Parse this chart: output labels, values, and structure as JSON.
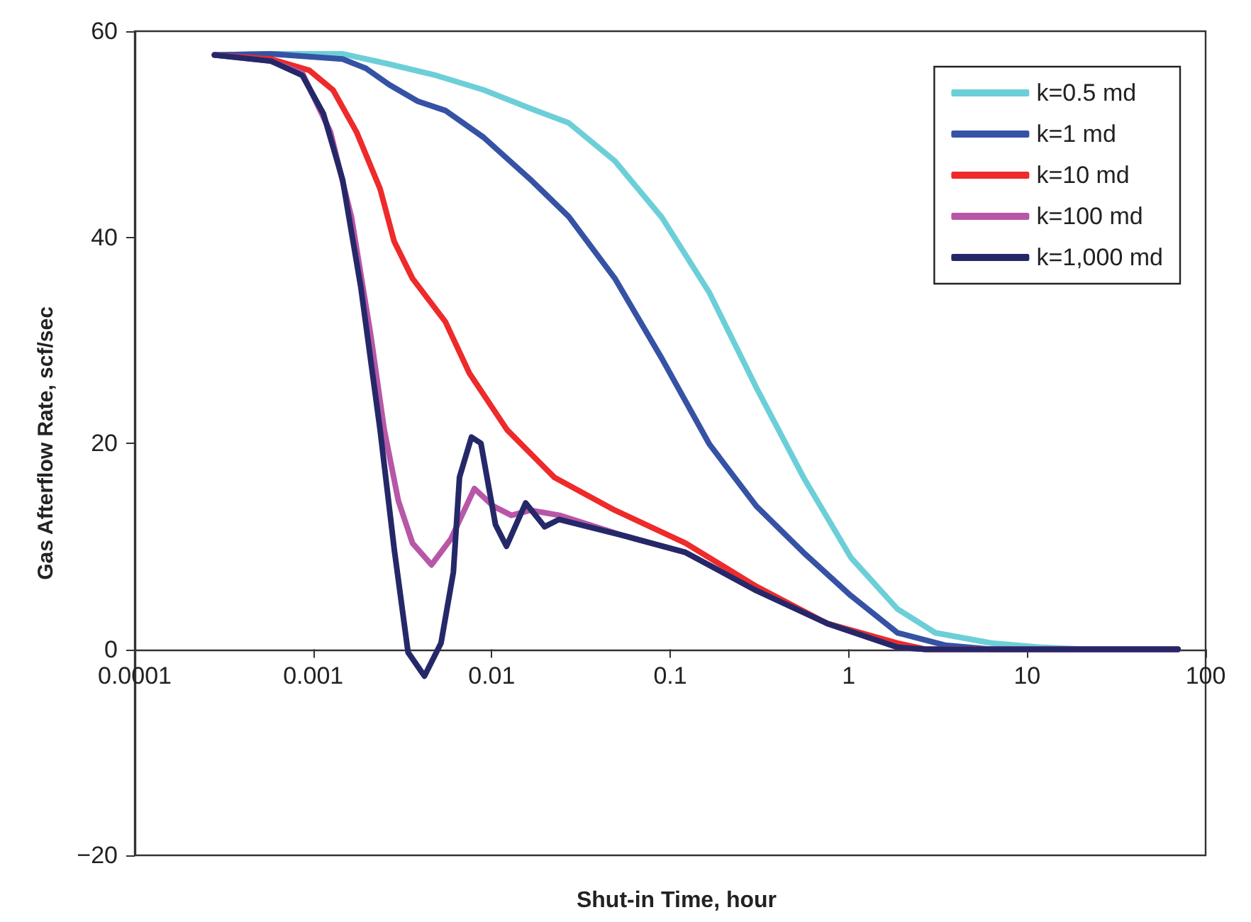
{
  "chart_data": {
    "type": "line",
    "xlabel": "Shut-in Time, hour",
    "ylabel": "Gas Afterflow Rate, scf/sec",
    "log": "x",
    "legend": "top right",
    "xlim": [
      0.0001,
      100
    ],
    "xticks": [
      0.0001,
      0.001,
      0.01,
      0.1,
      1,
      10,
      100
    ],
    "ylim": [
      -20,
      60
    ],
    "yticks": [
      {
        "value": -20,
        "label": "−20"
      },
      0,
      20,
      40,
      60
    ],
    "series": [
      {
        "name": "k=0.5 md",
        "color": "#6ccfd8",
        "x": [
          0.00028,
          0.00058,
          0.00146,
          0.00267,
          0.0049,
          0.009,
          0.0165,
          0.027,
          0.049,
          0.09,
          0.166,
          0.304,
          0.558,
          1.03,
          1.88,
          3.06,
          6.3,
          11.6,
          21.6,
          70
        ],
        "values": [
          57.7,
          57.8,
          57.8,
          56.8,
          55.7,
          54.3,
          52.5,
          51.1,
          47.4,
          41.9,
          34.6,
          25.4,
          16.7,
          8.9,
          3.9,
          1.6,
          0.6,
          0.2,
          0,
          0
        ]
      },
      {
        "name": "k=1 md",
        "color": "#3552a5",
        "x": [
          0.00028,
          0.00058,
          0.00146,
          0.00197,
          0.00267,
          0.00385,
          0.0055,
          0.009,
          0.0165,
          0.027,
          0.049,
          0.09,
          0.166,
          0.304,
          0.558,
          1.03,
          1.88,
          3.46,
          6.3,
          70
        ],
        "values": [
          57.7,
          57.8,
          57.3,
          56.4,
          54.8,
          53.2,
          52.3,
          49.7,
          45.6,
          42.0,
          36.0,
          28.2,
          19.9,
          13.9,
          9.4,
          5.2,
          1.6,
          0.4,
          0,
          0
        ]
      },
      {
        "name": "k=10 md",
        "color": "#ee2a2a",
        "x": [
          0.00028,
          0.00058,
          0.00095,
          0.00129,
          0.00175,
          0.00237,
          0.00284,
          0.0036,
          0.0055,
          0.0075,
          0.0122,
          0.0224,
          0.049,
          0.122,
          0.304,
          0.76,
          1.88,
          2.7,
          70
        ],
        "values": [
          57.7,
          57.3,
          56.2,
          54.3,
          50.2,
          44.7,
          39.6,
          36.0,
          31.8,
          26.8,
          21.3,
          16.7,
          13.5,
          10.3,
          6.1,
          2.5,
          0.6,
          0,
          0
        ]
      },
      {
        "name": "k=100 md",
        "color": "#b857a8",
        "x": [
          0.00028,
          0.00058,
          0.00087,
          0.00125,
          0.00164,
          0.0021,
          0.0025,
          0.003,
          0.0036,
          0.0046,
          0.0059,
          0.008,
          0.0102,
          0.0129,
          0.0165,
          0.024,
          0.0556,
          0.122,
          0.304,
          0.76,
          1.88,
          2.7,
          70
        ],
        "values": [
          57.7,
          57.1,
          55.9,
          50.2,
          41.9,
          30.5,
          21.3,
          14.4,
          10.3,
          8.2,
          10.7,
          15.6,
          13.9,
          13.0,
          13.5,
          13.0,
          11.0,
          9.4,
          5.7,
          2.5,
          0.2,
          0,
          0
        ]
      },
      {
        "name": "k=1,000 md",
        "color": "#252868",
        "x": [
          0.00028,
          0.00058,
          0.00087,
          0.00114,
          0.00146,
          0.00185,
          0.00237,
          0.00284,
          0.0034,
          0.0042,
          0.0052,
          0.0061,
          0.0066,
          0.0077,
          0.0087,
          0.0105,
          0.0121,
          0.0155,
          0.0198,
          0.0238,
          0.0556,
          0.122,
          0.304,
          0.76,
          1.88,
          2.7,
          70
        ],
        "values": [
          57.7,
          57.1,
          55.7,
          52.0,
          45.6,
          35.1,
          21.3,
          9.8,
          -0.3,
          -2.6,
          0.6,
          7.5,
          16.7,
          20.6,
          20.0,
          12.1,
          10.0,
          14.2,
          11.9,
          12.6,
          11.0,
          9.4,
          5.7,
          2.5,
          0.2,
          0,
          0
        ]
      }
    ]
  }
}
